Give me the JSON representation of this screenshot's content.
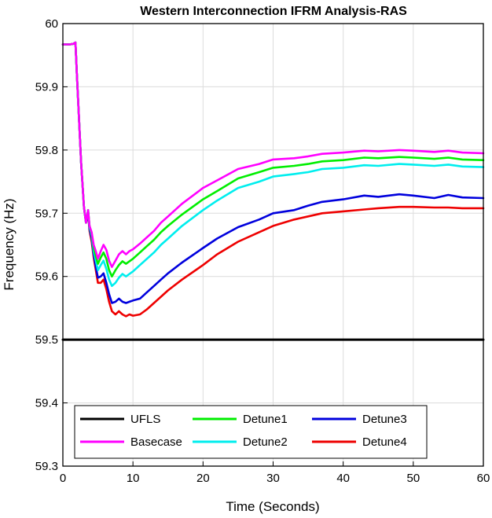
{
  "chart_data": {
    "type": "line",
    "title": "Western Interconnection IFRM Analysis-RAS",
    "xlabel": "Time (Seconds)",
    "ylabel": "Frequency (Hz)",
    "xlim": [
      0,
      60
    ],
    "ylim": [
      59.3,
      60
    ],
    "xticks": [
      0,
      10,
      20,
      30,
      40,
      50,
      60
    ],
    "yticks": [
      59.3,
      59.4,
      59.5,
      59.6,
      59.7,
      59.8,
      59.9,
      60
    ],
    "xtick_labels": [
      "0",
      "10",
      "20",
      "30",
      "40",
      "50",
      "60"
    ],
    "ytick_labels": [
      "59.3",
      "59.4",
      "59.5",
      "59.6",
      "59.7",
      "59.8",
      "59.9",
      "60"
    ],
    "grid": true,
    "legend_position": "bottom",
    "legend_order": [
      "UFLS",
      "Detune1",
      "Detune3",
      "Basecase",
      "Detune2",
      "Detune4"
    ],
    "series": [
      {
        "name": "UFLS",
        "color": "#000000",
        "x": [
          0,
          60
        ],
        "y": [
          59.5,
          59.5
        ]
      },
      {
        "name": "Basecase",
        "color": "#ff00ff",
        "x": [
          0,
          1,
          1.5,
          1.8,
          2.0,
          2.3,
          2.6,
          3.0,
          3.3,
          3.6,
          3.8,
          4.1,
          4.4,
          4.7,
          5.0,
          5.4,
          5.8,
          6.2,
          6.6,
          7.0,
          7.5,
          8.0,
          8.5,
          9.0,
          9.5,
          10.0,
          11,
          12,
          13,
          14,
          15,
          17,
          20,
          22,
          25,
          28,
          30,
          33,
          35,
          37,
          40,
          43,
          45,
          48,
          50,
          53,
          55,
          57,
          60
        ],
        "y": [
          59.967,
          59.967,
          59.968,
          59.97,
          59.92,
          59.85,
          59.78,
          59.71,
          59.685,
          59.705,
          59.68,
          59.67,
          59.65,
          59.64,
          59.628,
          59.64,
          59.65,
          59.642,
          59.625,
          59.615,
          59.625,
          59.635,
          59.64,
          59.635,
          59.64,
          59.643,
          59.652,
          59.662,
          59.672,
          59.685,
          59.695,
          59.715,
          59.74,
          59.752,
          59.77,
          59.778,
          59.785,
          59.787,
          59.79,
          59.794,
          59.796,
          59.799,
          59.798,
          59.8,
          59.799,
          59.797,
          59.799,
          59.796,
          59.795
        ]
      },
      {
        "name": "Detune1",
        "color": "#00ee00",
        "x": [
          0,
          1,
          1.5,
          1.8,
          2.0,
          2.3,
          2.6,
          3.0,
          3.3,
          3.6,
          3.8,
          4.1,
          4.4,
          4.7,
          5.0,
          5.4,
          5.8,
          6.2,
          6.6,
          7.0,
          7.5,
          8.0,
          8.5,
          9.0,
          9.5,
          10.0,
          11,
          12,
          13,
          14,
          15,
          17,
          20,
          22,
          25,
          28,
          30,
          33,
          35,
          37,
          40,
          43,
          45,
          48,
          50,
          53,
          55,
          57,
          60
        ],
        "y": [
          59.967,
          59.967,
          59.968,
          59.97,
          59.92,
          59.85,
          59.78,
          59.71,
          59.685,
          59.705,
          59.68,
          59.668,
          59.645,
          59.632,
          59.62,
          59.63,
          59.638,
          59.628,
          59.61,
          59.6,
          59.61,
          59.618,
          59.624,
          59.62,
          59.624,
          59.628,
          59.638,
          59.648,
          59.658,
          59.67,
          59.68,
          59.698,
          59.722,
          59.735,
          59.755,
          59.765,
          59.772,
          59.775,
          59.778,
          59.782,
          59.784,
          59.788,
          59.787,
          59.789,
          59.788,
          59.786,
          59.788,
          59.785,
          59.784
        ]
      },
      {
        "name": "Detune2",
        "color": "#00eeee",
        "x": [
          0,
          1,
          1.5,
          1.8,
          2.0,
          2.3,
          2.6,
          3.0,
          3.3,
          3.6,
          3.8,
          4.1,
          4.4,
          4.7,
          5.0,
          5.4,
          5.8,
          6.2,
          6.6,
          7.0,
          7.5,
          8.0,
          8.5,
          9.0,
          9.5,
          10.0,
          11,
          12,
          13,
          14,
          15,
          17,
          20,
          22,
          25,
          28,
          30,
          33,
          35,
          37,
          40,
          43,
          45,
          48,
          50,
          53,
          55,
          57,
          60
        ],
        "y": [
          59.967,
          59.967,
          59.968,
          59.97,
          59.92,
          59.85,
          59.78,
          59.71,
          59.685,
          59.705,
          59.678,
          59.665,
          59.64,
          59.625,
          59.61,
          59.618,
          59.625,
          59.612,
          59.595,
          59.585,
          59.59,
          59.598,
          59.604,
          59.6,
          59.604,
          59.608,
          59.618,
          59.628,
          59.638,
          59.65,
          59.66,
          59.68,
          59.705,
          59.72,
          59.74,
          59.75,
          59.758,
          59.762,
          59.765,
          59.77,
          59.772,
          59.776,
          59.775,
          59.778,
          59.777,
          59.775,
          59.777,
          59.774,
          59.773
        ]
      },
      {
        "name": "Detune3",
        "color": "#0000dd",
        "x": [
          0,
          1,
          1.5,
          1.8,
          2.0,
          2.3,
          2.6,
          3.0,
          3.3,
          3.6,
          3.8,
          4.1,
          4.4,
          4.7,
          5.0,
          5.4,
          5.8,
          6.2,
          6.6,
          7.0,
          7.5,
          8.0,
          8.5,
          9.0,
          9.5,
          10.0,
          11,
          12,
          13,
          14,
          15,
          17,
          20,
          22,
          25,
          28,
          30,
          33,
          35,
          37,
          40,
          43,
          45,
          48,
          50,
          53,
          55,
          57,
          60
        ],
        "y": [
          59.967,
          59.967,
          59.968,
          59.97,
          59.92,
          59.85,
          59.78,
          59.71,
          59.685,
          59.7,
          59.675,
          59.66,
          59.635,
          59.615,
          59.598,
          59.6,
          59.605,
          59.59,
          59.572,
          59.558,
          59.56,
          59.565,
          59.56,
          59.558,
          59.56,
          59.562,
          59.565,
          59.575,
          59.585,
          59.595,
          59.605,
          59.622,
          59.645,
          59.66,
          59.678,
          59.69,
          59.7,
          59.705,
          59.712,
          59.718,
          59.722,
          59.728,
          59.726,
          59.73,
          59.728,
          59.724,
          59.729,
          59.725,
          59.724
        ]
      },
      {
        "name": "Detune4",
        "color": "#ee0000",
        "x": [
          0,
          1,
          1.5,
          1.8,
          2.0,
          2.3,
          2.6,
          3.0,
          3.3,
          3.6,
          3.8,
          4.1,
          4.4,
          4.7,
          5.0,
          5.4,
          5.8,
          6.2,
          6.6,
          7.0,
          7.5,
          8.0,
          8.5,
          9.0,
          9.5,
          10.0,
          11,
          12,
          13,
          14,
          15,
          17,
          20,
          22,
          25,
          28,
          30,
          33,
          35,
          37,
          40,
          43,
          45,
          48,
          50,
          53,
          55,
          57,
          60
        ],
        "y": [
          59.967,
          59.967,
          59.968,
          59.97,
          59.92,
          59.85,
          59.78,
          59.71,
          59.685,
          59.7,
          59.672,
          59.655,
          59.63,
          59.61,
          59.59,
          59.59,
          59.595,
          59.58,
          59.56,
          59.545,
          59.54,
          59.545,
          59.54,
          59.537,
          59.54,
          59.538,
          59.54,
          59.548,
          59.558,
          59.568,
          59.578,
          59.595,
          59.618,
          59.635,
          59.655,
          59.67,
          59.68,
          59.69,
          59.695,
          59.7,
          59.703,
          59.706,
          59.708,
          59.71,
          59.71,
          59.709,
          59.709,
          59.708,
          59.708
        ]
      }
    ]
  }
}
